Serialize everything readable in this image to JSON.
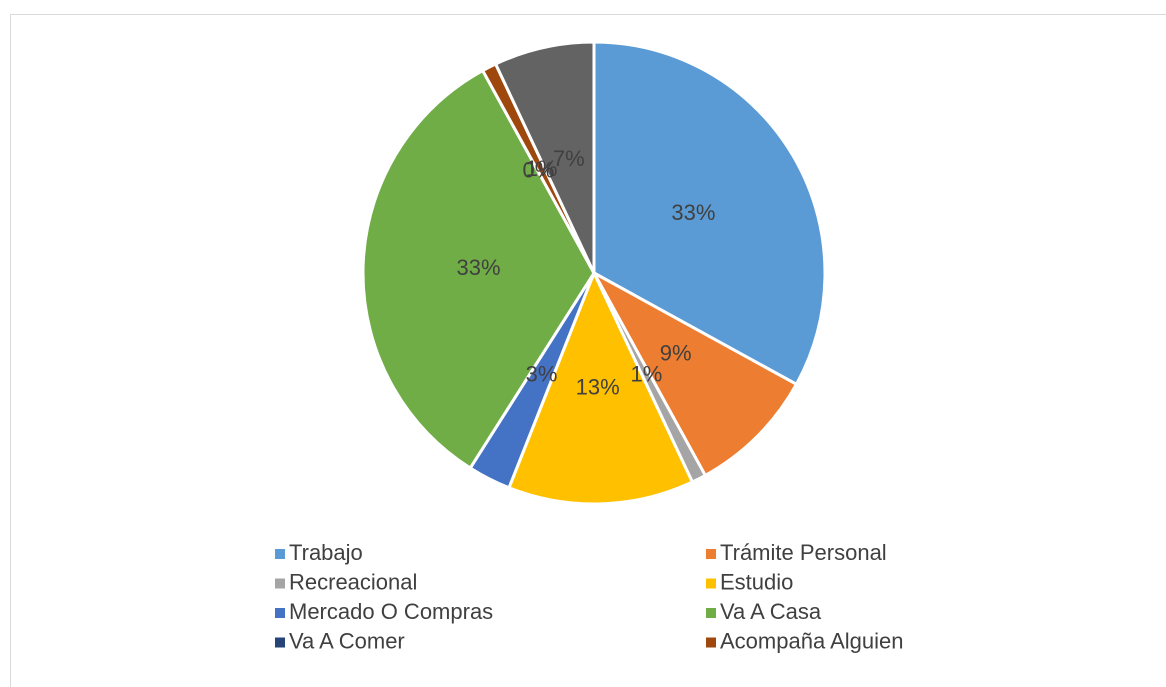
{
  "chart_data": {
    "type": "pie",
    "categories": [
      "Trabajo",
      "Trámite Personal",
      "Recreacional",
      "Estudio",
      "Mercado O Compras",
      "Va A Casa",
      "Va A Comer",
      "Acompaña Alguien",
      null
    ],
    "values": [
      33,
      9,
      1,
      13,
      3,
      33,
      0,
      1,
      7
    ],
    "value_labels": [
      "33%",
      "9%",
      "1%",
      "13%",
      "3%",
      "33%",
      "0%",
      "1%",
      "7%"
    ],
    "colors": [
      "#5b9bd5",
      "#ed7d31",
      "#a5a5a5",
      "#ffc000",
      "#4472c4",
      "#70ad47",
      "#264478",
      "#9e480e",
      "#636363"
    ],
    "legend": "bottom"
  }
}
